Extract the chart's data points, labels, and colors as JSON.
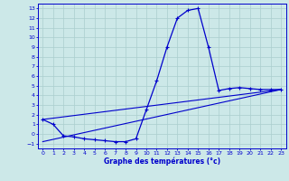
{
  "xlabel": "Graphe des températures (°c)",
  "background_color": "#cce8e8",
  "grid_color": "#aacece",
  "line_color": "#0000cc",
  "xlim": [
    -0.5,
    23.5
  ],
  "ylim": [
    -1.5,
    13.5
  ],
  "yticks": [
    -1,
    0,
    1,
    2,
    3,
    4,
    5,
    6,
    7,
    8,
    9,
    10,
    11,
    12,
    13
  ],
  "xticks": [
    0,
    1,
    2,
    3,
    4,
    5,
    6,
    7,
    8,
    9,
    10,
    11,
    12,
    13,
    14,
    15,
    16,
    17,
    18,
    19,
    20,
    21,
    22,
    23
  ],
  "temp_line": {
    "x": [
      0,
      1,
      2,
      3,
      4,
      5,
      6,
      7,
      8,
      9,
      10,
      11,
      12,
      13,
      14,
      15,
      16,
      17,
      18,
      19,
      20,
      21,
      22,
      23
    ],
    "y": [
      1.5,
      1.0,
      -0.2,
      -0.3,
      -0.5,
      -0.6,
      -0.7,
      -0.8,
      -0.8,
      -0.5,
      2.5,
      5.5,
      9.0,
      12.0,
      12.8,
      13.0,
      9.0,
      4.5,
      4.7,
      4.8,
      4.7,
      4.6,
      4.6,
      4.6
    ]
  },
  "reg_line1": {
    "x": [
      0,
      23
    ],
    "y": [
      1.5,
      4.6
    ]
  },
  "reg_line2": {
    "x": [
      0,
      23
    ],
    "y": [
      -0.8,
      4.6
    ]
  }
}
